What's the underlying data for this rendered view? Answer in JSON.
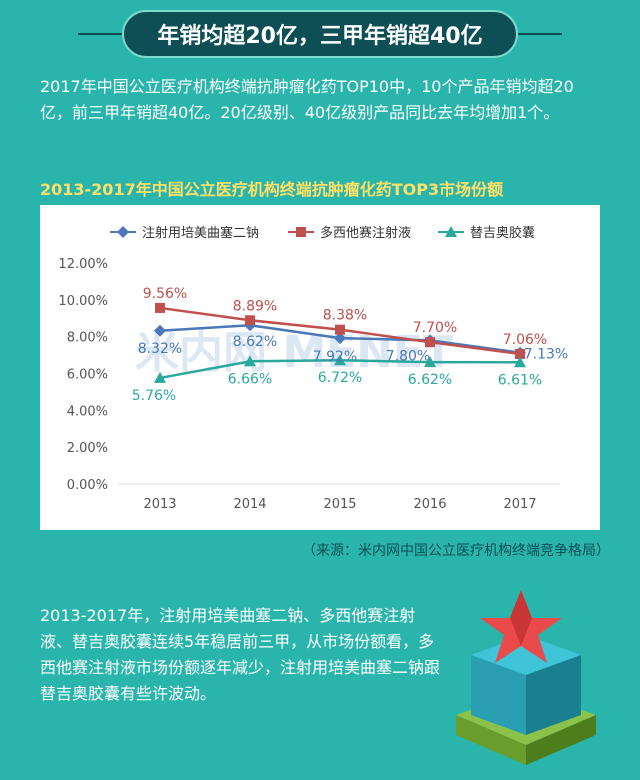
{
  "banner": {
    "title": "年销均超20亿，三甲年销超40亿"
  },
  "intro": {
    "text": "2017年中国公立医疗机构终端抗肿瘤化药TOP10中，10个产品年销均超20亿，前三甲年销超40亿。20亿级别、40亿级别产品同比去年均增加1个。"
  },
  "chart_title": "2013-2017年中国公立医疗机构终端抗肿瘤化药TOP3市场份额",
  "watermark": "米内网 MENET",
  "chart_data": {
    "type": "line",
    "title": "2013-2017年中国公立医疗机构终端抗肿瘤化药TOP3市场份额",
    "x": [
      "2013",
      "2014",
      "2015",
      "2016",
      "2017"
    ],
    "ylim": [
      0,
      12
    ],
    "yticks": [
      "0.00%",
      "2.00%",
      "4.00%",
      "6.00%",
      "8.00%",
      "10.00%",
      "12.00%"
    ],
    "grid": false,
    "legend_position": "top",
    "series": [
      {
        "name": "注射用培美曲塞二钠",
        "values": [
          8.32,
          8.62,
          7.92,
          7.8,
          7.13
        ],
        "labels": [
          "8.32%",
          "8.62%",
          "7.92%",
          "7.80%",
          "7.13%"
        ],
        "color": "#4a78b8",
        "marker": "diamond"
      },
      {
        "name": "多西他赛注射液",
        "values": [
          9.56,
          8.89,
          8.38,
          7.7,
          7.06
        ],
        "labels": [
          "9.56%",
          "8.89%",
          "8.38%",
          "7.70%",
          "7.06%"
        ],
        "color": "#c0504d",
        "marker": "square"
      },
      {
        "name": "替吉奥胶囊",
        "values": [
          5.76,
          6.66,
          6.72,
          6.62,
          6.61
        ],
        "labels": [
          "5.76%",
          "6.66%",
          "6.72%",
          "6.62%",
          "6.61%"
        ],
        "color": "#2aa89e",
        "marker": "triangle"
      }
    ]
  },
  "source": "（来源：米内网中国公立医疗机构终端竞争格局）",
  "bottom": {
    "text": "2013-2017年，注射用培美曲塞二钠、多西他赛注射液、替吉奥胶囊连续5年稳居前三甲，从市场份额看，多西他赛注射液市场份额逐年减少，注射用培美曲塞二钠跟替吉奥胶囊有些许波动。"
  }
}
